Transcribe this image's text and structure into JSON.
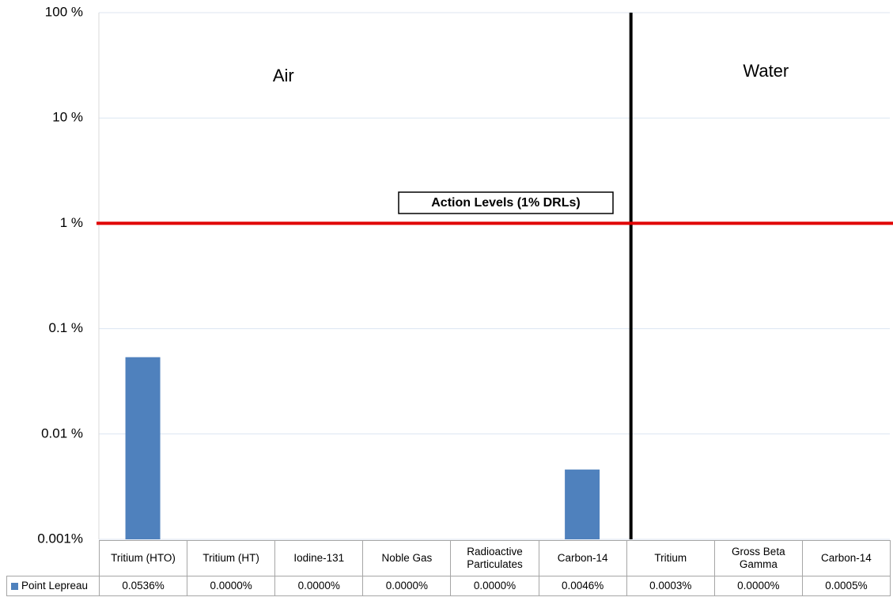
{
  "chart_data": {
    "type": "bar",
    "log_scale": true,
    "grid": true,
    "categories": [
      "Tritium (HTO)",
      "Tritium (HT)",
      "Iodine-131",
      "Noble Gas",
      "Radioactive Particulates",
      "Carbon-14",
      "Tritium",
      "Gross Beta Gamma",
      "Carbon-14"
    ],
    "series": [
      {
        "name": "Point Lepreau",
        "color": "#4f81bd",
        "values": [
          0.0536,
          0,
          0,
          0,
          0,
          0.0046,
          0.0003,
          0,
          0.0005
        ],
        "value_labels": [
          "0.0536%",
          "0.0000%",
          "0.0000%",
          "0.0000%",
          "0.0000%",
          "0.0046%",
          "0.0003%",
          "0.0000%",
          "0.0005%"
        ]
      }
    ],
    "ylim": [
      0.001,
      100
    ],
    "yticks": [
      {
        "value": 0.001,
        "label": "0.001%"
      },
      {
        "value": 0.01,
        "label": "0.01 %"
      },
      {
        "value": 0.1,
        "label": "0.1 %"
      },
      {
        "value": 1,
        "label": "1 %"
      },
      {
        "value": 10,
        "label": "10 %"
      },
      {
        "value": 100,
        "label": "100 %"
      }
    ],
    "groups": [
      {
        "label": "Air",
        "count": 6
      },
      {
        "label": "Water",
        "count": 3
      }
    ],
    "reference_line": {
      "value": 1,
      "label": "Action Levels (1% DRLs)",
      "color": "#e00000"
    }
  }
}
